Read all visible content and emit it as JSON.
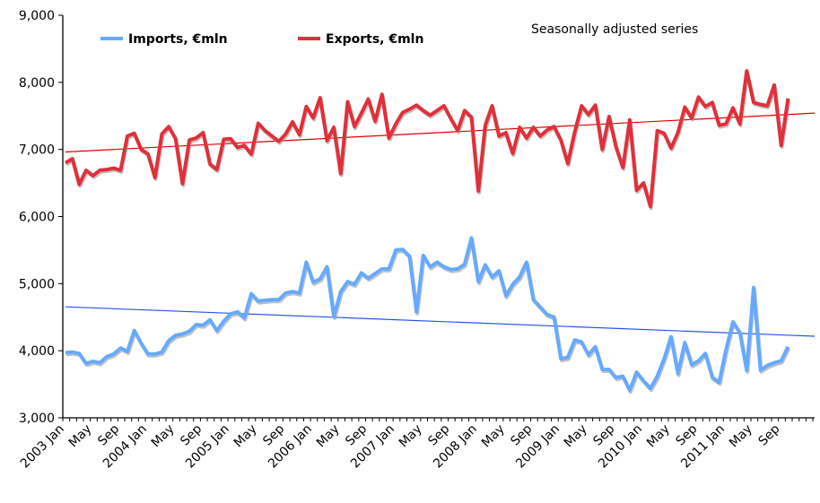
{
  "chart_data": {
    "type": "line",
    "title": "",
    "annotation": "Seasonally adjusted series",
    "xlabel": "",
    "ylabel": "",
    "ylim": [
      3000,
      9000
    ],
    "yticks": [
      "3,000",
      "4,000",
      "5,000",
      "6,000",
      "7,000",
      "8,000",
      "9,000"
    ],
    "ytick_values": [
      3000,
      4000,
      5000,
      6000,
      7000,
      8000,
      9000
    ],
    "x_start": "2003 Jan",
    "x_frequency": "monthly",
    "xticks": [
      "2003 Jan",
      "May",
      "Sep",
      "2004 Jan",
      "May",
      "Sep",
      "2005 Jan",
      "May",
      "Sep",
      "2006 Jan",
      "May",
      "Sep",
      "2007 Jan",
      "May",
      "Sep",
      "2008 Jan",
      "May",
      "Sep",
      "2009 Jan",
      "May",
      "Sep",
      "2010 Jan",
      "May",
      "Sep",
      "2011 Jan",
      "May",
      "Sep"
    ],
    "grid": false,
    "legend_placement": "top-left",
    "trendlines": "linear",
    "series": [
      {
        "name": "Imports, €mln",
        "color": "#66aaff",
        "trend_color": "#2255ee",
        "values": [
          3970,
          3980,
          3960,
          3810,
          3840,
          3820,
          3910,
          3950,
          4040,
          3990,
          4300,
          4110,
          3950,
          3950,
          3980,
          4150,
          4230,
          4250,
          4290,
          4390,
          4380,
          4460,
          4300,
          4440,
          4550,
          4580,
          4490,
          4850,
          4740,
          4750,
          4760,
          4760,
          4860,
          4880,
          4860,
          5320,
          5020,
          5070,
          5250,
          4510,
          4880,
          5030,
          4990,
          5160,
          5080,
          5150,
          5220,
          5220,
          5500,
          5510,
          5410,
          4580,
          5420,
          5250,
          5320,
          5250,
          5210,
          5220,
          5290,
          5680,
          5030,
          5280,
          5100,
          5190,
          4820,
          4990,
          5100,
          5320,
          4760,
          4650,
          4540,
          4500,
          3880,
          3900,
          4160,
          4130,
          3940,
          4060,
          3720,
          3720,
          3600,
          3620,
          3410,
          3680,
          3550,
          3440,
          3620,
          3880,
          4210,
          3660,
          4120,
          3790,
          3850,
          3960,
          3600,
          3530,
          4020,
          4430,
          4270,
          3710,
          4940,
          3710,
          3780,
          3820,
          3850,
          4060
        ]
      },
      {
        "name": "Exports, €mln",
        "color": "#e0303a",
        "trend_color": "#e00000",
        "values": [
          6800,
          6860,
          6480,
          6690,
          6610,
          6690,
          6700,
          6720,
          6690,
          7200,
          7240,
          7000,
          6930,
          6580,
          7230,
          7340,
          7160,
          6490,
          7140,
          7170,
          7250,
          6780,
          6700,
          7150,
          7160,
          7030,
          7060,
          6930,
          7390,
          7280,
          7200,
          7120,
          7230,
          7410,
          7220,
          7640,
          7470,
          7770,
          7130,
          7330,
          6640,
          7710,
          7340,
          7540,
          7750,
          7420,
          7820,
          7170,
          7380,
          7550,
          7600,
          7660,
          7580,
          7510,
          7580,
          7650,
          7460,
          7280,
          7580,
          7480,
          6380,
          7360,
          7650,
          7200,
          7250,
          6940,
          7330,
          7170,
          7330,
          7200,
          7290,
          7340,
          7140,
          6790,
          7260,
          7650,
          7520,
          7660,
          7000,
          7490,
          7040,
          6730,
          7440,
          6390,
          6500,
          6150,
          7280,
          7240,
          7020,
          7250,
          7630,
          7470,
          7780,
          7640,
          7700,
          7360,
          7380,
          7620,
          7380,
          8170,
          7700,
          7670,
          7650,
          7960,
          7060,
          7760
        ]
      }
    ]
  }
}
